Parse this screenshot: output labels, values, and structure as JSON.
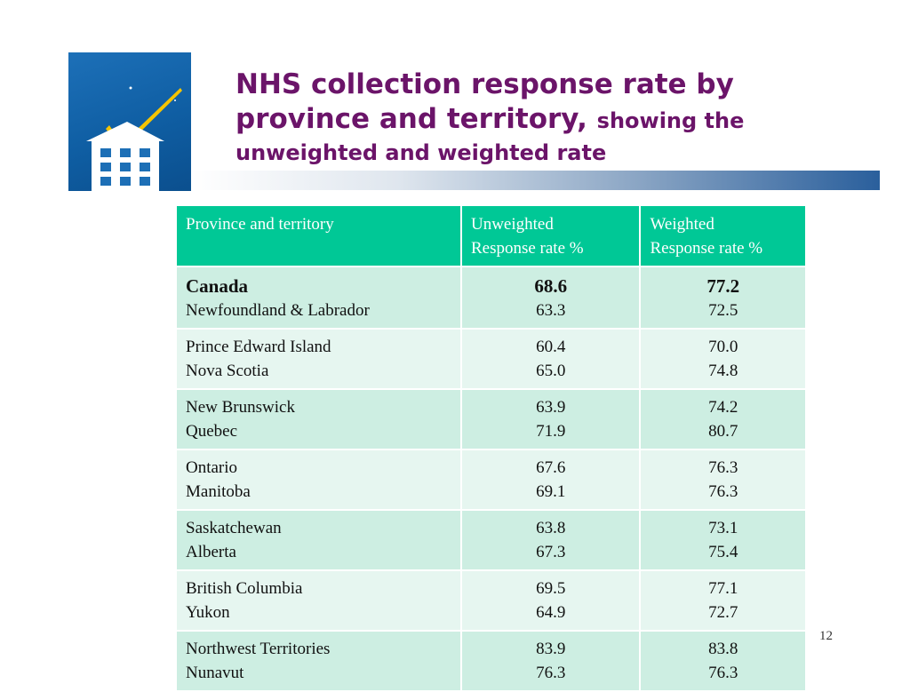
{
  "slide": {
    "title_line1": "NHS collection response rate by",
    "title_line2": "province and territory,",
    "title_sub": "showing the",
    "title_line3": "unweighted and weighted rate",
    "page_number": "12"
  },
  "table": {
    "headers": [
      "Province and territory",
      "Unweighted",
      "Response rate %",
      "Weighted",
      "Response rate %"
    ],
    "rows": [
      {
        "a": "Canada",
        "b": "Newfoundland & Labrador",
        "ua": "68.6",
        "ub": "63.3",
        "wa": "77.2",
        "wb": "72.5"
      },
      {
        "a": "Prince Edward Island",
        "b": "Nova Scotia",
        "ua": "60.4",
        "ub": "65.0",
        "wa": "70.0",
        "wb": "74.8"
      },
      {
        "a": "New Brunswick",
        "b": "Quebec",
        "ua": "63.9",
        "ub": "71.9",
        "wa": "74.2",
        "wb": "80.7"
      },
      {
        "a": "Ontario",
        "b": "Manitoba",
        "ua": "67.6",
        "ub": "69.1",
        "wa": "76.3",
        "wb": "76.3"
      },
      {
        "a": "Saskatchewan",
        "b": "Alberta",
        "ua": "63.8",
        "ub": "67.3",
        "wa": "73.1",
        "wb": "75.4"
      },
      {
        "a": "British Columbia",
        "b": "Yukon",
        "ua": "69.5",
        "ub": "64.9",
        "wa": "77.1",
        "wb": "72.7"
      },
      {
        "a": "Northwest Territories",
        "b": "Nunavut",
        "ua": "83.9",
        "ub": "76.3",
        "wa": "83.8",
        "wb": "76.3"
      }
    ]
  },
  "colors": {
    "title": "#6b1469",
    "header_bg": "#00c896",
    "row_dark": "#cdeee2",
    "row_light": "#e6f6f0"
  },
  "icons": {
    "logo": "house-checkmark-logo"
  }
}
